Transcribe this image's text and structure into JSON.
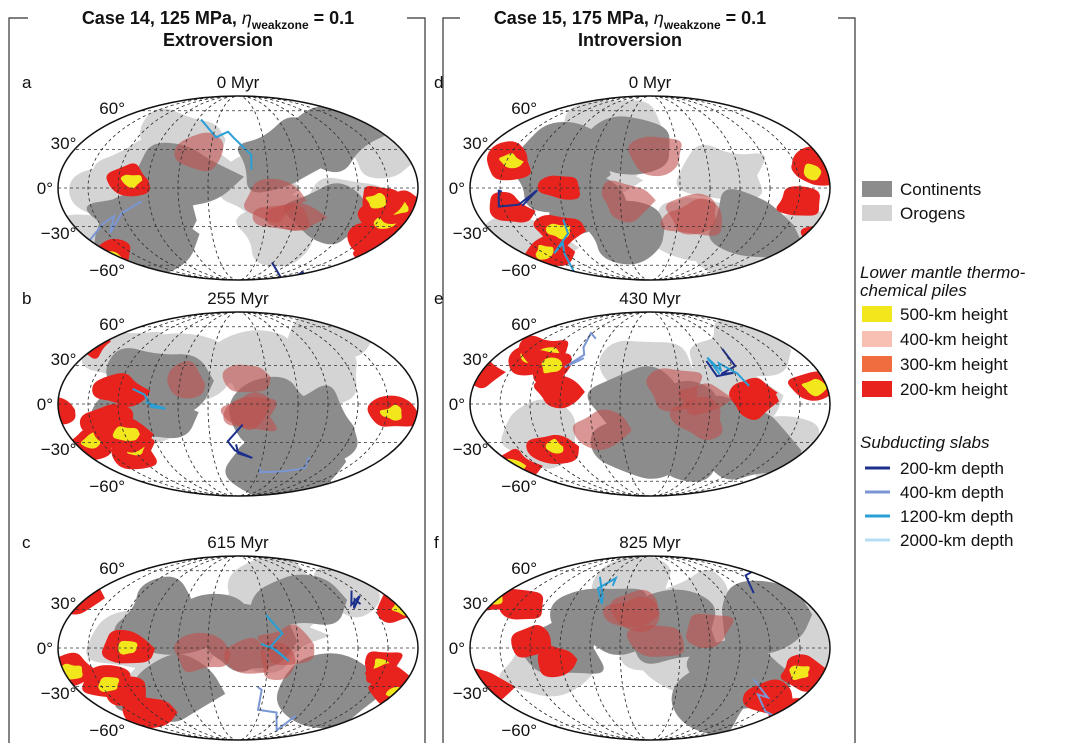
{
  "panels": [
    {
      "title": {
        "main": "Case 14, 125 MPa, ",
        "symbol": "η",
        "subscript": "weakzone",
        "rest": " = 0.1"
      },
      "subtitle": "Extroversion",
      "maps": [
        {
          "letter": "a",
          "time": "0 Myr"
        },
        {
          "letter": "b",
          "time": "255 Myr"
        },
        {
          "letter": "c",
          "time": "615 Myr"
        }
      ]
    },
    {
      "title": {
        "main": "Case 15, 175 MPa, ",
        "symbol": "η",
        "subscript": "weakzone",
        "rest": " = 0.1"
      },
      "subtitle": "Introversion",
      "maps": [
        {
          "letter": "d",
          "time": "0 Myr"
        },
        {
          "letter": "e",
          "time": "430 Myr"
        },
        {
          "letter": "f",
          "time": "825 Myr"
        }
      ]
    }
  ],
  "latitude_labels": [
    "60°",
    "30°",
    "0°",
    "−30°",
    "−60°"
  ],
  "legend": {
    "surface": [
      {
        "label": "Continents",
        "color": "#8c8c8c"
      },
      {
        "label": "Orogens",
        "color": "#d4d4d4"
      }
    ],
    "piles_title": [
      "Lower mantle thermo-",
      "chemical piles"
    ],
    "piles": [
      {
        "label": "500-km height",
        "color": "#f2e61c"
      },
      {
        "label": "400-km height",
        "color": "#f7c0b2"
      },
      {
        "label": "300-km height",
        "color": "#ef6d3f"
      },
      {
        "label": "200-km height",
        "color": "#e8231e"
      }
    ],
    "slabs_title": "Subducting slabs",
    "slabs": [
      {
        "label": "200-km depth",
        "color": "#1d2f8c"
      },
      {
        "label": "400-km depth",
        "color": "#7b96d4"
      },
      {
        "label": "1200-km depth",
        "color": "#2a9fd6"
      },
      {
        "label": "2000-km depth",
        "color": "#b5def3"
      }
    ]
  }
}
